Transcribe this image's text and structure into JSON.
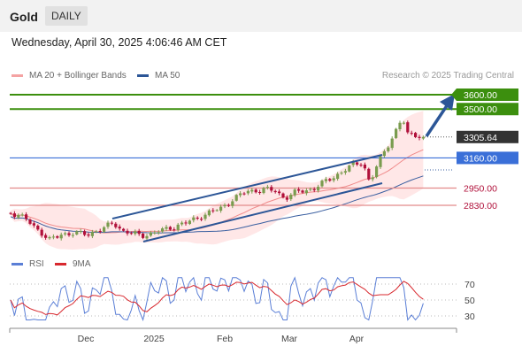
{
  "header": {
    "symbol": "Gold",
    "period": "DAILY"
  },
  "datetime": "Wednesday, April 30, 2025 4:06:46 AM CET",
  "legend": {
    "ma20_bb": "MA 20 + Bollinger Bands",
    "ma50": "MA 50",
    "credit": "Research © 2025 Trading Central"
  },
  "rsi_legend": {
    "rsi": "RSI",
    "ma9": "9MA"
  },
  "colors": {
    "bull": "#7a9c4f",
    "bear": "#b0103a",
    "bb_fill": "#ffe3e3",
    "ma20": "#f08a8a",
    "ma50": "#3a5fa0",
    "trend": "#2c5697",
    "green_level": "#3c8f0e",
    "blue_level": "#3a6fd8",
    "red_level": "#e28a8a",
    "rsi": "#5b7fd6",
    "rsi_ma": "#d8292f"
  },
  "chart_data": {
    "type": "candlestick",
    "price_axis": {
      "levels": [
        {
          "value": 3600,
          "label": "3600.00",
          "style": "resistance"
        },
        {
          "value": 3500,
          "label": "3500.00",
          "style": "resistance"
        },
        {
          "value": 3305.64,
          "label": "3305.64",
          "style": "last"
        },
        {
          "value": 3160,
          "label": "3160.00",
          "style": "pivot"
        },
        {
          "value": 2950,
          "label": "2950.00",
          "style": "support"
        },
        {
          "value": 2830,
          "label": "2830.00",
          "style": "support"
        }
      ]
    },
    "x_labels": [
      "Dec",
      "2025",
      "Feb",
      "Mar",
      "Apr"
    ],
    "series": [
      {
        "name": "MA 20 + Bollinger Bands"
      },
      {
        "name": "MA 50"
      }
    ],
    "rsi": {
      "ticks": [
        70,
        50,
        30
      ],
      "series": [
        {
          "name": "RSI"
        },
        {
          "name": "9MA"
        }
      ]
    }
  }
}
